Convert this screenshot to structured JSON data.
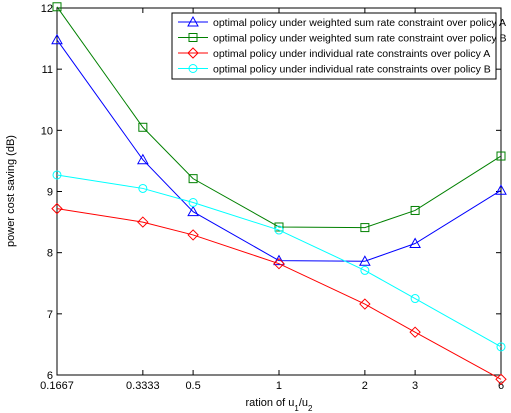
{
  "chart_data": {
    "type": "line",
    "xlabel_prefix": "ration of u",
    "xlabel_sub1": "1",
    "xlabel_mid": "/u",
    "xlabel_sub2": "2",
    "ylabel": "power cost saving (dB)",
    "x_scale": "log",
    "x": [
      0.1667,
      0.3333,
      0.5,
      1,
      2,
      3,
      6
    ],
    "xtick_labels": [
      "0.1667",
      "0.3333",
      "0.5",
      "1",
      "2",
      "3",
      "6"
    ],
    "ylim": [
      6,
      12
    ],
    "yticks": [
      6,
      7,
      8,
      9,
      10,
      11,
      12
    ],
    "ytick_labels": [
      "6",
      "7",
      "8",
      "9",
      "10",
      "11",
      "12"
    ],
    "grid": false,
    "legend_position": "top-right",
    "series": [
      {
        "name": "optimal policy under weighted sum rate constraint over policy A",
        "color": "#0000ff",
        "marker": "triangle",
        "values": [
          11.48,
          9.52,
          8.67,
          7.87,
          7.86,
          8.15,
          9.02
        ]
      },
      {
        "name": "optimal policy under weighted sum rate constraint over policy B",
        "color": "#008000",
        "marker": "square",
        "values": [
          12.02,
          10.05,
          9.21,
          8.42,
          8.41,
          8.69,
          9.58
        ]
      },
      {
        "name": "optimal policy under individual rate constraints over policy A",
        "color": "#ff0000",
        "marker": "diamond",
        "values": [
          8.72,
          8.5,
          8.29,
          7.82,
          7.16,
          6.7,
          5.93
        ]
      },
      {
        "name": "optimal policy under individual rate constraints over policy B",
        "color": "#00ffff",
        "marker": "circle",
        "values": [
          9.27,
          9.05,
          8.82,
          8.37,
          7.71,
          7.25,
          6.46
        ]
      }
    ]
  }
}
